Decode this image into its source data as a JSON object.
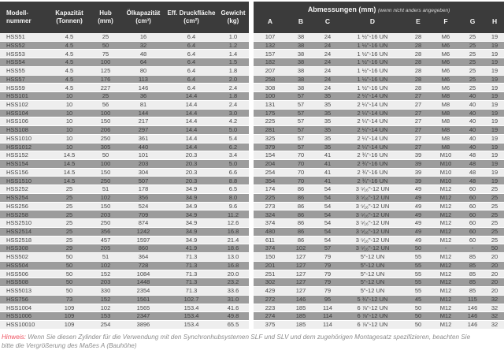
{
  "spec_header": {
    "columns": [
      {
        "l1": "Modell-",
        "l2": "nummer"
      },
      {
        "l1": "Kapazität",
        "l2": "(Tonnen)"
      },
      {
        "l1": "Hub",
        "l2": "(mm)"
      },
      {
        "l1": "Ölkapazität",
        "l2": "(cm³)"
      },
      {
        "l1": "Eff. Druckfläche",
        "l2": "(cm²)"
      },
      {
        "l1": "Gewicht",
        "l2": "(kg)"
      }
    ]
  },
  "dims_header": {
    "title": "Abmessungen (mm)",
    "subtitle": "(wenn nicht anders angegeben)",
    "letters": [
      "A",
      "B",
      "C",
      "D",
      "E",
      "F",
      "G",
      "H"
    ]
  },
  "table": {
    "rows": [
      [
        "HSS51",
        "4.5",
        "25",
        "16",
        "6.4",
        "1.0",
        "107",
        "38",
        "24",
        "1 ½\"-16 UN",
        "28",
        "M6",
        "25",
        "19"
      ],
      [
        "HSS52",
        "4.5",
        "50",
        "32",
        "6.4",
        "1.2",
        "132",
        "38",
        "24",
        "1 ½\"-16 UN",
        "28",
        "M6",
        "25",
        "19"
      ],
      [
        "HSS53",
        "4.5",
        "75",
        "48",
        "6.4",
        "1.4",
        "157",
        "38",
        "24",
        "1 ½\"-16 UN",
        "28",
        "M6",
        "25",
        "19"
      ],
      [
        "HSS54",
        "4.5",
        "100",
        "64",
        "6.4",
        "1.5",
        "182",
        "38",
        "24",
        "1 ½\"-16 UN",
        "28",
        "M6",
        "25",
        "19"
      ],
      [
        "HSS55",
        "4.5",
        "125",
        "80",
        "6.4",
        "1.8",
        "207",
        "38",
        "24",
        "1 ½\"-16 UN",
        "28",
        "M6",
        "25",
        "19"
      ],
      [
        "HSS57",
        "4.5",
        "176",
        "113",
        "6.4",
        "2.0",
        "258",
        "38",
        "24",
        "1 ½\"-16 UN",
        "28",
        "M6",
        "25",
        "19"
      ],
      [
        "HSS59",
        "4.5",
        "227",
        "146",
        "6.4",
        "2.4",
        "308",
        "38",
        "24",
        "1 ½\"-16 UN",
        "28",
        "M6",
        "25",
        "19"
      ],
      [
        "HSS101",
        "10",
        "25",
        "36",
        "14.4",
        "1.8",
        "100",
        "57",
        "35",
        "2 ¼\"-14 UN",
        "27",
        "M8",
        "40",
        "19"
      ],
      [
        "HSS102",
        "10",
        "56",
        "81",
        "14.4",
        "2.4",
        "131",
        "57",
        "35",
        "2 ¼\"-14 UN",
        "27",
        "M8",
        "40",
        "19"
      ],
      [
        "HSS104",
        "10",
        "100",
        "144",
        "14.4",
        "3.0",
        "175",
        "57",
        "35",
        "2 ¼\"-14 UN",
        "27",
        "M8",
        "40",
        "19"
      ],
      [
        "HSS106",
        "10",
        "150",
        "217",
        "14.4",
        "4.2",
        "225",
        "57",
        "35",
        "2 ¼\"-14 UN",
        "27",
        "M8",
        "40",
        "19"
      ],
      [
        "HSS108",
        "10",
        "206",
        "297",
        "14.4",
        "5.0",
        "281",
        "57",
        "35",
        "2 ¼\"-14 UN",
        "27",
        "M8",
        "40",
        "19"
      ],
      [
        "HSS1010",
        "10",
        "250",
        "361",
        "14.4",
        "5.4",
        "325",
        "57",
        "35",
        "2 ¼\"-14 UN",
        "27",
        "M8",
        "40",
        "19"
      ],
      [
        "HSS1012",
        "10",
        "305",
        "440",
        "14.4",
        "6.2",
        "379",
        "57",
        "35",
        "2 ¼\"-14 UN",
        "27",
        "M8",
        "40",
        "19"
      ],
      [
        "HSS152",
        "14.5",
        "50",
        "101",
        "20.3",
        "3.4",
        "154",
        "70",
        "41",
        "2 ¾\"-16 UN",
        "39",
        "M10",
        "48",
        "19"
      ],
      [
        "HSS154",
        "14.5",
        "100",
        "203",
        "20.3",
        "5.0",
        "204",
        "70",
        "41",
        "2 ¾\"-16 UN",
        "39",
        "M10",
        "48",
        "19"
      ],
      [
        "HSS156",
        "14.5",
        "150",
        "304",
        "20.3",
        "6.6",
        "254",
        "70",
        "41",
        "2 ¾\"-16 UN",
        "39",
        "M10",
        "48",
        "19"
      ],
      [
        "HSS1510",
        "14.5",
        "250",
        "507",
        "20.3",
        "8.8",
        "354",
        "70",
        "41",
        "2 ¾\"-16 UN",
        "39",
        "M10",
        "48",
        "19"
      ],
      [
        "HSS252",
        "25",
        "51",
        "178",
        "34.9",
        "6.5",
        "174",
        "86",
        "54",
        "3 ⁵⁄₁₆\"-12 UN",
        "49",
        "M12",
        "60",
        "25"
      ],
      [
        "HSS254",
        "25",
        "102",
        "356",
        "34.9",
        "8.0",
        "225",
        "86",
        "54",
        "3 ⁵⁄₁₆\"-12 UN",
        "49",
        "M12",
        "60",
        "25"
      ],
      [
        "HSS256",
        "25",
        "150",
        "524",
        "34.9",
        "9.6",
        "273",
        "86",
        "54",
        "3 ⁵⁄₁₆\"-12 UN",
        "49",
        "M12",
        "60",
        "25"
      ],
      [
        "HSS258",
        "25",
        "203",
        "709",
        "34.9",
        "11.2",
        "324",
        "86",
        "54",
        "3 ⁵⁄₁₆\"-12 UN",
        "49",
        "M12",
        "60",
        "25"
      ],
      [
        "HSS2510",
        "25",
        "250",
        "874",
        "34.9",
        "12.6",
        "374",
        "86",
        "54",
        "3 ⁵⁄₁₆\"-12 UN",
        "49",
        "M12",
        "60",
        "25"
      ],
      [
        "HSS2514",
        "25",
        "356",
        "1242",
        "34.9",
        "16.8",
        "480",
        "86",
        "54",
        "3 ⁵⁄₁₆\"-12 UN",
        "49",
        "M12",
        "60",
        "25"
      ],
      [
        "HSS2518",
        "25",
        "457",
        "1597",
        "34.9",
        "21.4",
        "611",
        "86",
        "54",
        "3 ⁵⁄₁₆\"-12 UN",
        "49",
        "M12",
        "60",
        "25"
      ],
      [
        "HSS308",
        "29",
        "205",
        "860",
        "41.9",
        "18.6",
        "374",
        "102",
        "57",
        "3 ⁵⁄₁₆\"-12 UN",
        "50",
        "-",
        "-",
        "50"
      ],
      [
        "HSS502",
        "50",
        "51",
        "364",
        "71.3",
        "13.0",
        "150",
        "127",
        "79",
        "5\"-12 UN",
        "55",
        "M12",
        "85",
        "20"
      ],
      [
        "HSS504",
        "50",
        "102",
        "728",
        "71.3",
        "16.8",
        "201",
        "127",
        "79",
        "5\"-12 UN",
        "55",
        "M12",
        "85",
        "20"
      ],
      [
        "HSS506",
        "50",
        "152",
        "1084",
        "71.3",
        "20.0",
        "251",
        "127",
        "79",
        "5\"-12 UN",
        "55",
        "M12",
        "85",
        "20"
      ],
      [
        "HSS508",
        "50",
        "203",
        "1448",
        "71.3",
        "23.2",
        "302",
        "127",
        "79",
        "5\"-12 UN",
        "55",
        "M12",
        "85",
        "20"
      ],
      [
        "HSS5013",
        "50",
        "330",
        "2354",
        "71.3",
        "33.6",
        "429",
        "127",
        "79",
        "5\"-12 UN",
        "55",
        "M12",
        "85",
        "20"
      ],
      [
        "HSS756",
        "73",
        "152",
        "1561",
        "102.7",
        "31.0",
        "272",
        "146",
        "95",
        "5 ¾\"-12 UN",
        "45",
        "M12",
        "115",
        "32"
      ],
      [
        "HSS1004",
        "109",
        "102",
        "1565",
        "153.4",
        "41.6",
        "223",
        "185",
        "114",
        "6 ⅞\"-12 UN",
        "50",
        "M12",
        "146",
        "32"
      ],
      [
        "HSS1006",
        "109",
        "153",
        "2347",
        "153.4",
        "49.8",
        "274",
        "185",
        "114",
        "6 ⅞\"-12 UN",
        "50",
        "M12",
        "146",
        "32"
      ],
      [
        "HSS10010",
        "109",
        "254",
        "3896",
        "153.4",
        "65.5",
        "375",
        "185",
        "114",
        "6 ⅞\"-12 UN",
        "50",
        "M12",
        "146",
        "32"
      ]
    ]
  },
  "note": {
    "label": "Hinweis:",
    "text": " Wenn Sie diesen Zylinder für die Verwendung mit den Synchronhubsystemen SLF und SLV und dem zugehörigen Montagesatz spezifizieren, beachten Sie bitte die Vergrößerung des Maßes A (Bauhöhe)"
  }
}
